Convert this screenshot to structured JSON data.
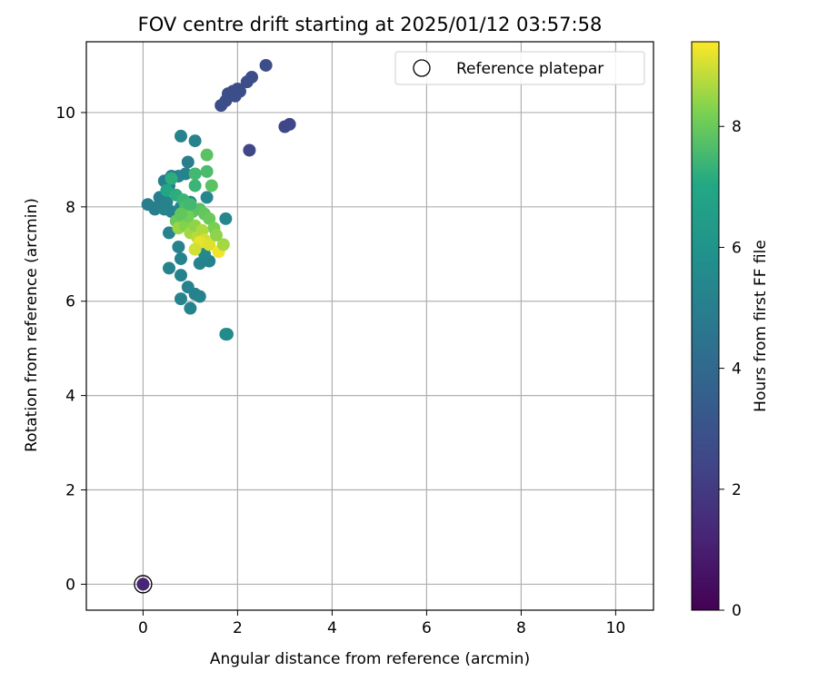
{
  "chart_data": {
    "type": "scatter",
    "title": "FOV centre drift starting at 2025/01/12 03:57:58",
    "xlabel": "Angular distance from reference (arcmin)",
    "ylabel": "Rotation from reference (arcmin)",
    "xlim": [
      -1.2,
      10.8
    ],
    "ylim": [
      -0.55,
      11.5
    ],
    "xticks": [
      0,
      2,
      4,
      6,
      8,
      10
    ],
    "yticks": [
      0,
      2,
      4,
      6,
      8,
      10
    ],
    "grid": true,
    "legend": {
      "position": "top-right",
      "label": "Reference platepar",
      "marker": "open-circle"
    },
    "colorbar": {
      "label": "Hours from first FF file",
      "range": [
        0,
        9.4
      ],
      "ticks": [
        0,
        2,
        4,
        6,
        8
      ],
      "colormap": "viridis"
    },
    "reference_point": {
      "x": 0,
      "y": 0
    },
    "points": [
      {
        "x": 0.0,
        "y": 0.0,
        "c": 1.2
      },
      {
        "x": 1.8,
        "y": 10.4,
        "c": 2.8
      },
      {
        "x": 1.9,
        "y": 10.45,
        "c": 2.8
      },
      {
        "x": 2.0,
        "y": 10.5,
        "c": 2.8
      },
      {
        "x": 2.05,
        "y": 10.45,
        "c": 2.8
      },
      {
        "x": 1.95,
        "y": 10.35,
        "c": 2.8
      },
      {
        "x": 2.2,
        "y": 10.65,
        "c": 2.8
      },
      {
        "x": 2.3,
        "y": 10.75,
        "c": 2.8
      },
      {
        "x": 2.6,
        "y": 11.0,
        "c": 2.8
      },
      {
        "x": 1.65,
        "y": 10.15,
        "c": 2.8
      },
      {
        "x": 1.75,
        "y": 10.25,
        "c": 2.8
      },
      {
        "x": 3.0,
        "y": 9.7,
        "c": 2.5
      },
      {
        "x": 3.1,
        "y": 9.75,
        "c": 2.5
      },
      {
        "x": 2.25,
        "y": 9.2,
        "c": 2.5
      },
      {
        "x": 0.8,
        "y": 9.5,
        "c": 5.2
      },
      {
        "x": 1.1,
        "y": 9.4,
        "c": 5.2
      },
      {
        "x": 0.95,
        "y": 8.95,
        "c": 5.0
      },
      {
        "x": 0.9,
        "y": 8.7,
        "c": 5.2
      },
      {
        "x": 0.75,
        "y": 8.65,
        "c": 5.2
      },
      {
        "x": 0.6,
        "y": 8.65,
        "c": 5.0
      },
      {
        "x": 0.45,
        "y": 8.55,
        "c": 5.0
      },
      {
        "x": 0.55,
        "y": 8.45,
        "c": 5.0
      },
      {
        "x": 0.35,
        "y": 8.2,
        "c": 5.0
      },
      {
        "x": 0.5,
        "y": 8.1,
        "c": 5.2
      },
      {
        "x": 0.3,
        "y": 8.0,
        "c": 5.0
      },
      {
        "x": 0.1,
        "y": 8.05,
        "c": 5.0
      },
      {
        "x": 0.25,
        "y": 7.95,
        "c": 5.0
      },
      {
        "x": 0.45,
        "y": 7.95,
        "c": 5.2
      },
      {
        "x": 0.6,
        "y": 7.9,
        "c": 5.2
      },
      {
        "x": 0.8,
        "y": 8.0,
        "c": 5.4
      },
      {
        "x": 1.0,
        "y": 8.1,
        "c": 5.4
      },
      {
        "x": 1.35,
        "y": 8.2,
        "c": 5.4
      },
      {
        "x": 1.75,
        "y": 7.75,
        "c": 5.4
      },
      {
        "x": 0.55,
        "y": 7.45,
        "c": 5.2
      },
      {
        "x": 0.75,
        "y": 7.15,
        "c": 5.2
      },
      {
        "x": 0.55,
        "y": 6.7,
        "c": 5.2
      },
      {
        "x": 0.8,
        "y": 6.9,
        "c": 5.2
      },
      {
        "x": 0.8,
        "y": 6.55,
        "c": 5.2
      },
      {
        "x": 0.95,
        "y": 6.3,
        "c": 5.2
      },
      {
        "x": 1.1,
        "y": 6.15,
        "c": 5.2
      },
      {
        "x": 1.2,
        "y": 6.1,
        "c": 5.2
      },
      {
        "x": 0.8,
        "y": 6.05,
        "c": 5.2
      },
      {
        "x": 1.0,
        "y": 5.85,
        "c": 5.2
      },
      {
        "x": 1.2,
        "y": 6.8,
        "c": 5.2
      },
      {
        "x": 1.4,
        "y": 6.85,
        "c": 5.2
      },
      {
        "x": 1.3,
        "y": 7.0,
        "c": 5.5
      },
      {
        "x": 1.75,
        "y": 5.3,
        "c": 5.6
      },
      {
        "x": 1.78,
        "y": 5.3,
        "c": 5.6
      },
      {
        "x": 0.6,
        "y": 8.6,
        "c": 7.2
      },
      {
        "x": 0.5,
        "y": 8.35,
        "c": 7.0
      },
      {
        "x": 0.7,
        "y": 8.25,
        "c": 7.2
      },
      {
        "x": 1.1,
        "y": 8.7,
        "c": 7.5
      },
      {
        "x": 1.35,
        "y": 8.75,
        "c": 7.6
      },
      {
        "x": 1.35,
        "y": 9.1,
        "c": 7.8
      },
      {
        "x": 1.1,
        "y": 8.45,
        "c": 7.4
      },
      {
        "x": 1.45,
        "y": 8.45,
        "c": 7.8
      },
      {
        "x": 0.85,
        "y": 8.15,
        "c": 7.4
      },
      {
        "x": 0.9,
        "y": 8.0,
        "c": 7.6
      },
      {
        "x": 1.05,
        "y": 7.9,
        "c": 7.8
      },
      {
        "x": 1.2,
        "y": 7.95,
        "c": 7.8
      },
      {
        "x": 1.3,
        "y": 7.85,
        "c": 7.9
      },
      {
        "x": 1.4,
        "y": 7.75,
        "c": 8.0
      },
      {
        "x": 1.5,
        "y": 7.55,
        "c": 8.2
      },
      {
        "x": 0.7,
        "y": 7.7,
        "c": 8.0
      },
      {
        "x": 0.75,
        "y": 7.55,
        "c": 8.5
      },
      {
        "x": 0.9,
        "y": 7.6,
        "c": 8.3
      },
      {
        "x": 1.0,
        "y": 7.45,
        "c": 8.6
      },
      {
        "x": 1.1,
        "y": 7.6,
        "c": 8.4
      },
      {
        "x": 1.15,
        "y": 7.35,
        "c": 8.8
      },
      {
        "x": 1.25,
        "y": 7.5,
        "c": 8.7
      },
      {
        "x": 1.3,
        "y": 7.3,
        "c": 9.0
      },
      {
        "x": 1.2,
        "y": 7.25,
        "c": 9.2
      },
      {
        "x": 1.4,
        "y": 7.2,
        "c": 9.1
      },
      {
        "x": 1.1,
        "y": 7.1,
        "c": 9.0
      },
      {
        "x": 1.6,
        "y": 7.05,
        "c": 9.3
      },
      {
        "x": 1.7,
        "y": 7.2,
        "c": 8.6
      },
      {
        "x": 1.55,
        "y": 7.4,
        "c": 8.4
      },
      {
        "x": 0.95,
        "y": 7.8,
        "c": 8.1
      },
      {
        "x": 0.8,
        "y": 7.85,
        "c": 7.9
      },
      {
        "x": 1.0,
        "y": 8.05,
        "c": 7.5
      }
    ]
  }
}
